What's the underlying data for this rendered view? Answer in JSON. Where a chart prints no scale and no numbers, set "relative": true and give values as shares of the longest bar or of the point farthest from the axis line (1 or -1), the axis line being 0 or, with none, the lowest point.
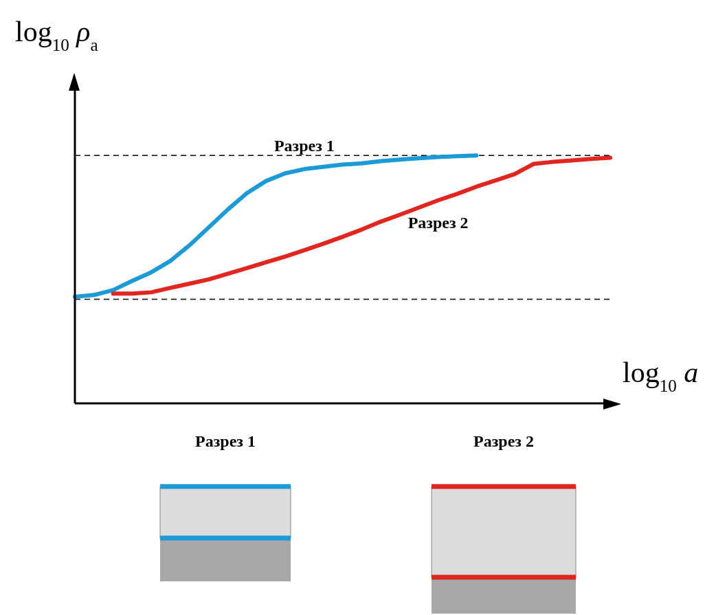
{
  "chart_data": {
    "type": "line",
    "relative": true,
    "xlabel": "log$_{10}$ a",
    "ylabel": "log$_{10}$ ρ$_{a}$",
    "categories": [
      null,
      null,
      null,
      null,
      null,
      null,
      null,
      null,
      null,
      null,
      null,
      null,
      null,
      null,
      null,
      null,
      null,
      null,
      null,
      null,
      null,
      null,
      null,
      null,
      null,
      null,
      null,
      null,
      null
    ],
    "series": [
      {
        "name": "Разрез 1",
        "color": "#1a9ad6",
        "values": [
          0.43,
          0.437,
          0.457,
          0.494,
          0.529,
          0.575,
          0.638,
          0.71,
          0.782,
          0.848,
          0.897,
          0.928,
          0.945,
          0.954,
          0.963,
          0.968,
          0.977,
          0.983,
          0.989,
          0.994,
          0.997,
          1,
          null,
          null,
          null,
          null,
          null,
          null,
          null
        ]
      },
      {
        "name": "Разрез 2",
        "color": "#e0261f",
        "values": [
          null,
          null,
          0.443,
          0.443,
          0.448,
          0.466,
          0.483,
          0.5,
          0.523,
          0.546,
          0.569,
          0.592,
          0.618,
          0.644,
          0.672,
          0.701,
          0.733,
          0.761,
          0.79,
          0.819,
          0.845,
          0.874,
          0.899,
          0.925,
          0.966,
          0.974,
          0.98,
          0.986,
          0.991
        ]
      }
    ],
    "ref_lines": [
      {
        "axis": "y",
        "value": 1,
        "line_style": "dashed",
        "color": "#000000"
      },
      {
        "axis": "y",
        "value": 0.42,
        "line_style": "dashed",
        "color": "#000000"
      }
    ],
    "annotations": [
      "Разрез 1",
      "Разрез 2"
    ],
    "legend": false,
    "grid": false,
    "marker": "none",
    "line_style": "solid"
  }
}
